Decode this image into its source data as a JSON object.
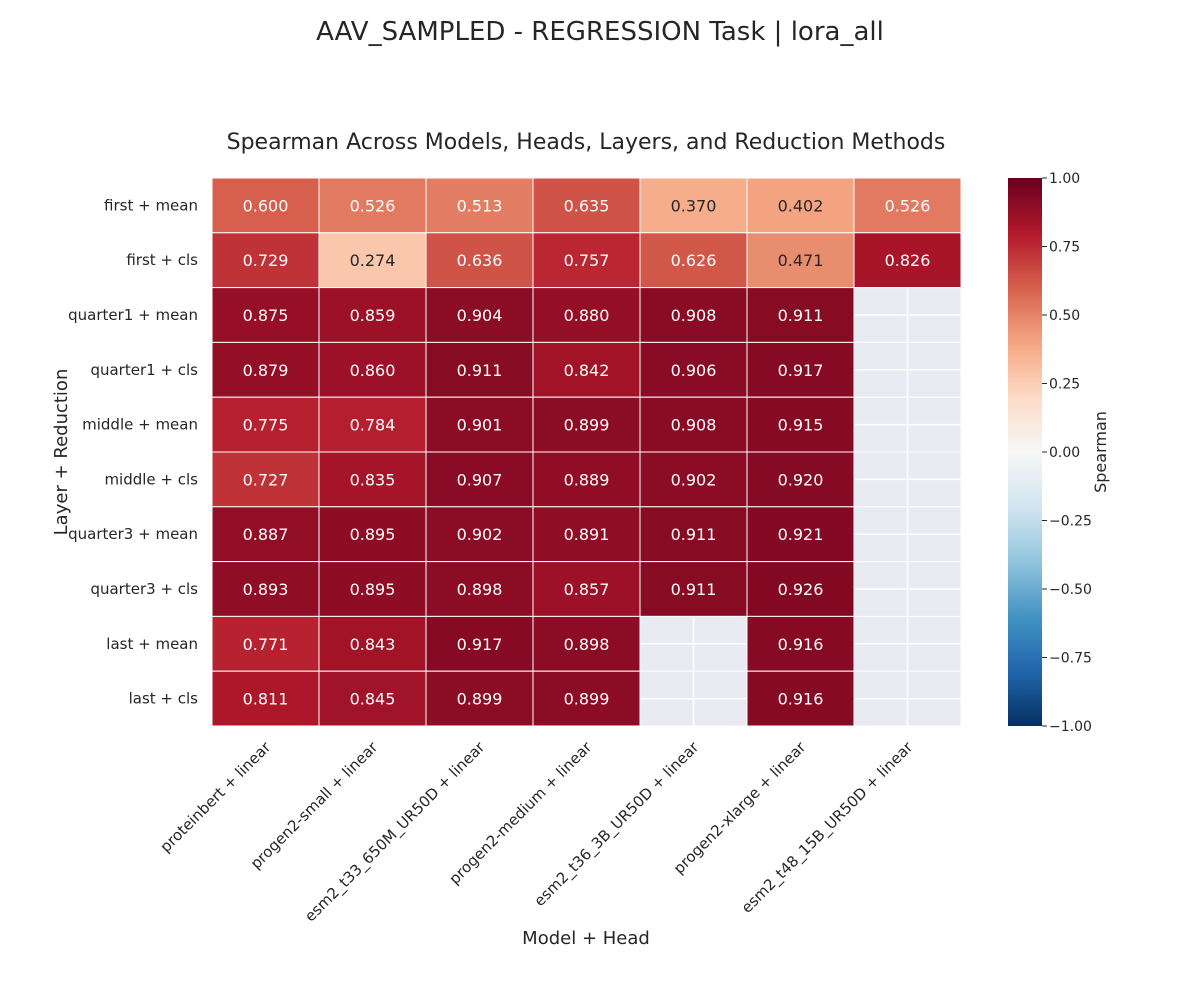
{
  "chart_data": {
    "type": "heatmap",
    "suptitle": "AAV_SAMPLED - REGRESSION Task | lora_all",
    "title": "Spearman Across Models, Heads, Layers, and Reduction Methods",
    "xlabel": "Model + Head",
    "ylabel": "Layer + Reduction",
    "colorbar_label": "Spearman",
    "colormap": "RdBu_r",
    "vmin": -1.0,
    "vmax": 1.0,
    "colorbar_ticks": [
      "1.00",
      "0.75",
      "0.50",
      "0.25",
      "0.00",
      "−0.25",
      "−0.50",
      "−0.75",
      "−1.00"
    ],
    "x": [
      "proteinbert + linear",
      "progen2-small + linear",
      "esm2_t33_650M_UR50D + linear",
      "progen2-medium + linear",
      "esm2_t36_3B_UR50D + linear",
      "progen2-xlarge + linear",
      "esm2_t48_15B_UR50D + linear"
    ],
    "y": [
      "first + mean",
      "first + cls",
      "quarter1 + mean",
      "quarter1 + cls",
      "middle + mean",
      "middle + cls",
      "quarter3 + mean",
      "quarter3 + cls",
      "last + mean",
      "last + cls"
    ],
    "values": [
      [
        0.6,
        0.526,
        0.513,
        0.635,
        0.37,
        0.402,
        0.526
      ],
      [
        0.729,
        0.274,
        0.636,
        0.757,
        0.626,
        0.471,
        0.826
      ],
      [
        0.875,
        0.859,
        0.904,
        0.88,
        0.908,
        0.911,
        null
      ],
      [
        0.879,
        0.86,
        0.911,
        0.842,
        0.906,
        0.917,
        null
      ],
      [
        0.775,
        0.784,
        0.901,
        0.899,
        0.908,
        0.915,
        null
      ],
      [
        0.727,
        0.835,
        0.907,
        0.889,
        0.902,
        0.92,
        null
      ],
      [
        0.887,
        0.895,
        0.902,
        0.891,
        0.911,
        0.921,
        null
      ],
      [
        0.893,
        0.895,
        0.898,
        0.857,
        0.911,
        0.926,
        null
      ],
      [
        0.771,
        0.843,
        0.917,
        0.898,
        null,
        0.916,
        null
      ],
      [
        0.811,
        0.845,
        0.899,
        0.899,
        null,
        0.916,
        null
      ]
    ],
    "missing_color": "#eaeaf2"
  }
}
